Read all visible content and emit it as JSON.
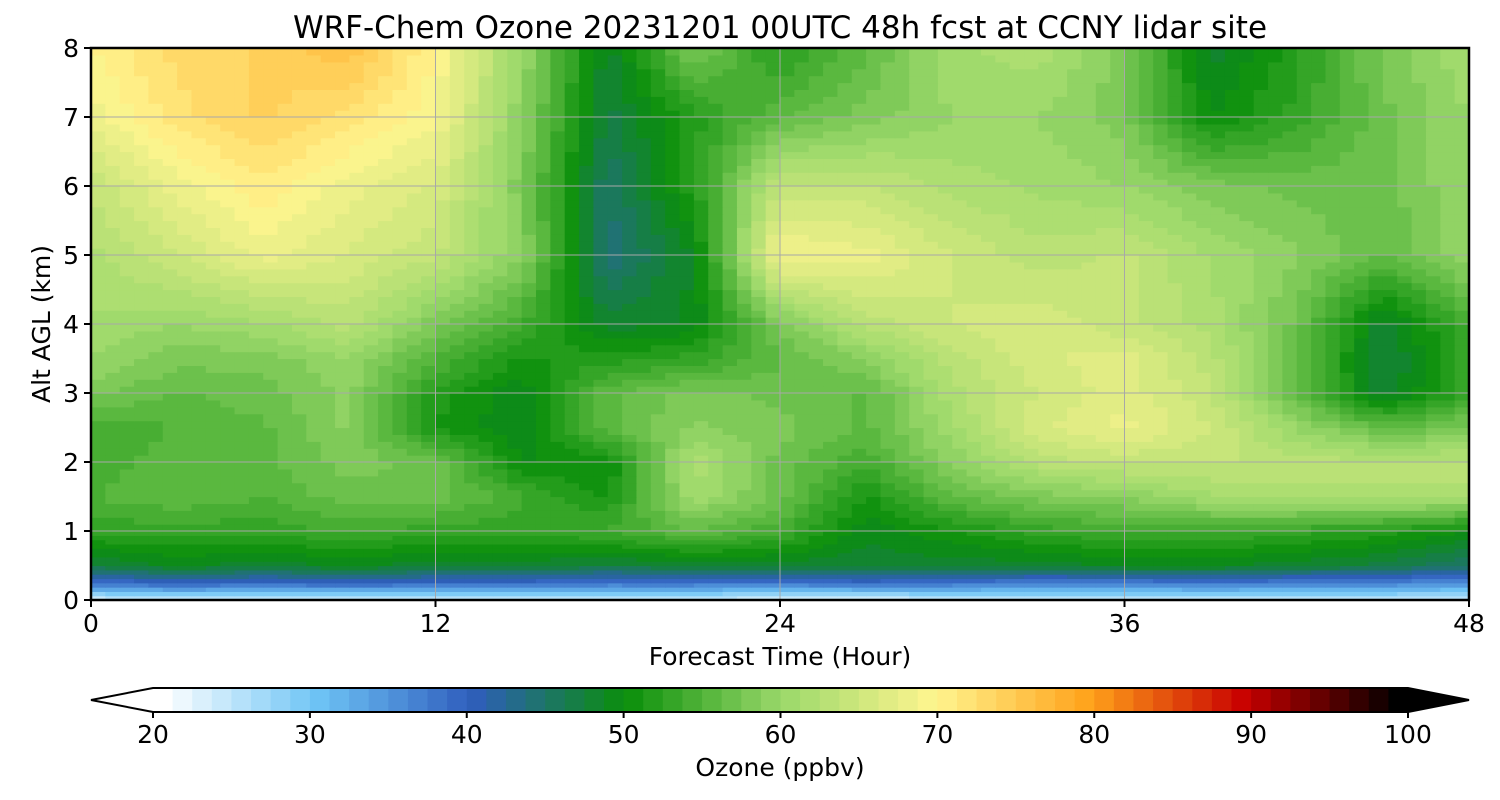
{
  "chart_data": {
    "type": "heatmap",
    "title": "WRF-Chem Ozone  20231201 00UTC 48h fcst at CCNY lidar site",
    "xlabel": "Forecast Time (Hour)",
    "ylabel": "Alt AGL (km)",
    "xlim": [
      0,
      48
    ],
    "ylim": [
      0,
      8
    ],
    "xticks": [
      "0",
      "12",
      "24",
      "36",
      "48"
    ],
    "yticks": [
      "0",
      "1",
      "2",
      "3",
      "4",
      "5",
      "6",
      "7",
      "8"
    ],
    "grid": true,
    "colorbar": {
      "label": "Ozone  (ppbv)",
      "range": [
        20,
        100
      ],
      "ticks": [
        "20",
        "30",
        "40",
        "50",
        "60",
        "70",
        "80",
        "90",
        "100"
      ],
      "extend": "both",
      "colors": [
        "#ffffff",
        "#6ec4f5",
        "#2f5dbd",
        "#0a8f0a",
        "#9ad86a",
        "#fff58f",
        "#ffa21a",
        "#c80000",
        "#000000"
      ]
    },
    "x": [
      0,
      3,
      6,
      9,
      12,
      15,
      18,
      21,
      24,
      27,
      30,
      33,
      36,
      39,
      42,
      45,
      48
    ],
    "y": [
      0,
      0.25,
      0.5,
      1,
      1.5,
      2,
      2.5,
      3,
      3.5,
      4,
      5,
      6,
      7,
      8
    ],
    "values": [
      [
        23,
        24,
        23,
        23,
        24,
        24,
        24,
        24,
        22,
        22,
        24,
        24,
        24,
        24,
        24,
        24,
        24
      ],
      [
        38,
        40,
        39,
        40,
        39,
        39,
        38,
        38,
        38,
        39,
        38,
        37,
        37,
        38,
        37,
        37,
        35
      ],
      [
        47,
        49,
        48,
        49,
        48,
        48,
        47,
        48,
        48,
        48,
        48,
        48,
        49,
        49,
        48,
        47,
        45
      ],
      [
        53,
        53,
        53,
        54,
        53,
        53,
        54,
        56,
        54,
        49,
        51,
        53,
        54,
        54,
        53,
        52,
        50
      ],
      [
        55,
        56,
        55,
        57,
        57,
        54,
        51,
        61,
        57,
        51,
        56,
        58,
        59,
        61,
        62,
        62,
        62
      ],
      [
        54,
        56,
        56,
        58,
        57,
        50,
        50,
        62,
        57,
        54,
        59,
        63,
        64,
        64,
        63,
        63,
        63
      ],
      [
        54,
        55,
        56,
        59,
        51,
        49,
        56,
        59,
        58,
        56,
        61,
        66,
        68,
        65,
        60,
        56,
        58
      ],
      [
        58,
        56,
        57,
        59,
        52,
        49,
        56,
        58,
        57,
        56,
        62,
        65,
        67,
        64,
        56,
        48,
        53
      ],
      [
        60,
        58,
        58,
        60,
        55,
        51,
        52,
        53,
        56,
        59,
        63,
        66,
        67,
        63,
        57,
        47,
        53
      ],
      [
        61,
        60,
        61,
        63,
        58,
        54,
        48,
        49,
        58,
        63,
        65,
        66,
        64,
        62,
        57,
        48,
        54
      ],
      [
        62,
        65,
        68,
        66,
        64,
        59,
        44,
        49,
        69,
        68,
        65,
        63,
        64,
        61,
        59,
        56,
        60
      ],
      [
        64,
        68,
        71,
        68,
        66,
        58,
        45,
        52,
        64,
        64,
        62,
        61,
        60,
        58,
        57,
        57,
        60
      ],
      [
        68,
        72,
        74,
        72,
        69,
        59,
        47,
        52,
        56,
        58,
        60,
        60,
        58,
        50,
        53,
        57,
        60
      ],
      [
        70,
        73,
        74,
        76,
        70,
        60,
        48,
        58,
        52,
        56,
        61,
        62,
        58,
        48,
        52,
        58,
        61
      ]
    ]
  }
}
